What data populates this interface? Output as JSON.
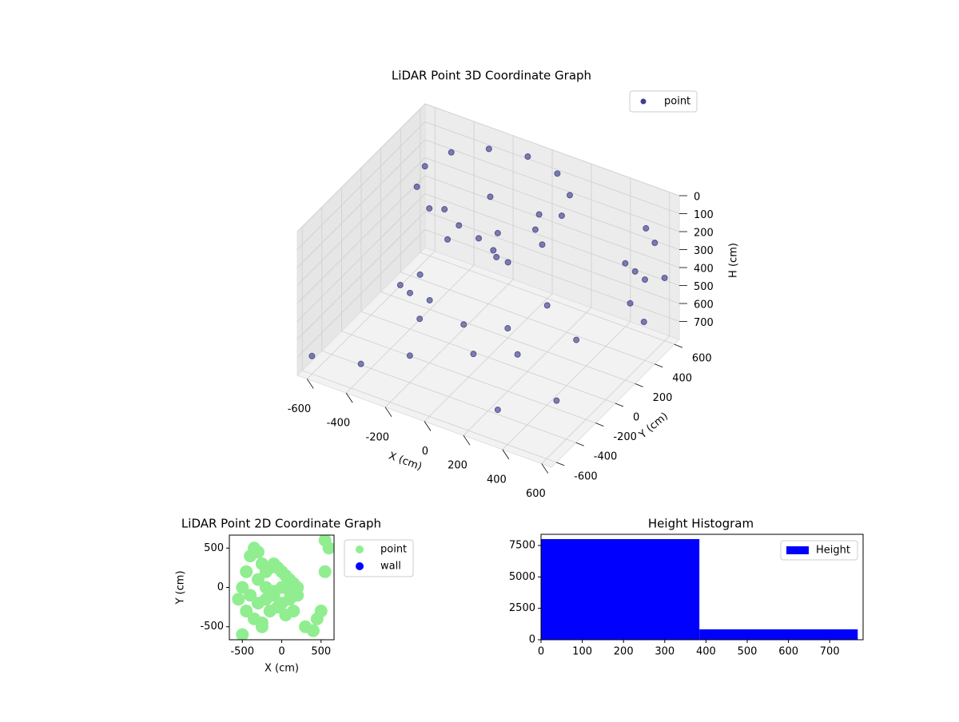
{
  "chart_data": [
    {
      "type": "scatter3d",
      "title": "LiDAR Point 3D Coordinate Graph",
      "x_label": "X (cm)",
      "y_label": "Y (cm)",
      "z_label": "H (cm)",
      "xlim": [
        -650,
        650
      ],
      "ylim": [
        -650,
        650
      ],
      "zlim": [
        0,
        800
      ],
      "z_inverted": true,
      "xticks": [
        -600,
        -400,
        -200,
        0,
        200,
        400,
        600
      ],
      "yticks": [
        -600,
        -400,
        -200,
        0,
        200,
        400,
        600
      ],
      "zticks": [
        0,
        100,
        200,
        300,
        400,
        500,
        600,
        700
      ],
      "grid": true,
      "legend": "upper right",
      "series": [
        {
          "name": "point",
          "color": "#3f3f8a",
          "x": [
            250,
            203,
            75,
            -100,
            -275,
            -403,
            -450,
            -403,
            -275,
            -100,
            75,
            203,
            150,
            25,
            -225,
            -350,
            -225,
            25,
            -100,
            0,
            -200,
            -300,
            -200,
            0,
            100,
            200,
            -400,
            600,
            600,
            600,
            600,
            600,
            620,
            600,
            580,
            -600,
            -400,
            -200,
            300,
            500,
            -500,
            400,
            200,
            -300,
            100
          ],
          "y": [
            250,
            425,
            553,
            600,
            553,
            425,
            250,
            75,
            -53,
            -100,
            -53,
            75,
            250,
            467,
            467,
            250,
            33,
            33,
            250,
            200,
            300,
            -200,
            -300,
            -250,
            -350,
            -200,
            -100,
            200,
            300,
            400,
            500,
            600,
            350,
            250,
            450,
            -600,
            -500,
            -400,
            -500,
            -300,
            300,
            100,
            -100,
            0,
            400
          ],
          "z": [
            50,
            50,
            50,
            50,
            50,
            50,
            50,
            50,
            50,
            50,
            50,
            50,
            250,
            250,
            250,
            250,
            250,
            250,
            380,
            380,
            380,
            450,
            500,
            480,
            550,
            450,
            500,
            150,
            250,
            350,
            200,
            450,
            550,
            400,
            100,
            700,
            720,
            650,
            700,
            680,
            700,
            600,
            650,
            600,
            690
          ]
        }
      ]
    },
    {
      "type": "scatter",
      "title": "LiDAR Point 2D Coordinate Graph",
      "x_label": "X (cm)",
      "y_label": "Y (cm)",
      "xlim": [
        -665,
        665
      ],
      "ylim": [
        -665,
        665
      ],
      "xticks": [
        -500,
        0,
        500
      ],
      "yticks": [
        -500,
        0,
        500
      ],
      "legend": "outside right",
      "series": [
        {
          "name": "point",
          "color": "#90ee90",
          "x": [
            -500,
            -450,
            -400,
            -350,
            -300,
            -250,
            -200,
            -150,
            -100,
            -50,
            0,
            50,
            100,
            150,
            200,
            -400,
            -300,
            -200,
            -100,
            0,
            100,
            200,
            -450,
            -350,
            -250,
            -150,
            -50,
            50,
            150,
            -300,
            -200,
            -100,
            0,
            100,
            550,
            600,
            450,
            500,
            -550,
            -500,
            400,
            300,
            -250,
            550
          ],
          "y": [
            0,
            200,
            400,
            500,
            450,
            300,
            200,
            250,
            300,
            250,
            200,
            150,
            100,
            50,
            0,
            -100,
            -200,
            -150,
            -100,
            -200,
            -150,
            -100,
            -300,
            -400,
            -450,
            -300,
            -250,
            -350,
            -300,
            100,
            0,
            -50,
            0,
            -50,
            600,
            500,
            -400,
            -300,
            -150,
            -600,
            -550,
            -500,
            -500,
            200
          ]
        },
        {
          "name": "wall",
          "color": "#0000ff",
          "x": [],
          "y": []
        }
      ]
    },
    {
      "type": "histogram",
      "title": "Height Histogram",
      "bins": [
        0,
        384,
        768
      ],
      "values": [
        8010,
        826
      ],
      "xlim": [
        0,
        781
      ],
      "ylim": [
        0,
        8390
      ],
      "xticks": [
        0,
        100,
        200,
        300,
        400,
        500,
        600,
        700
      ],
      "yticks": [
        0,
        2500,
        5000,
        7500
      ],
      "legend": "upper right",
      "series": [
        {
          "name": "Height",
          "color": "#0000ff"
        }
      ]
    }
  ]
}
